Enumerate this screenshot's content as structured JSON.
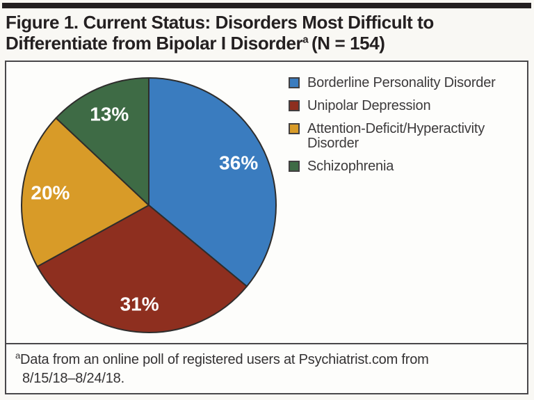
{
  "figure": {
    "title": {
      "line1": "Figure 1. Current Status: Disorders Most Difficult to",
      "line2": "Differentiate from Bipolar I Disorder",
      "superscript": "a",
      "sample": "(N = 154)"
    },
    "footnote": {
      "superscript": "a",
      "line1": "Data from an online poll of registered users at Psychiatrist.com from",
      "line2": "8/15/18–8/24/18."
    }
  },
  "chart_data": {
    "type": "pie",
    "title": "Current Status: Disorders Most Difficult to Differentiate from Bipolar I Disorder",
    "sample_size_n": 154,
    "unit": "%",
    "start_angle_deg": 0,
    "direction": "clockwise",
    "legend_position": "right",
    "categories": [
      "Borderline Personality Disorder",
      "Unipolar Depression",
      "Attention-Deficit/Hyperactivity Disorder",
      "Schizophrenia"
    ],
    "values": [
      36,
      31,
      20,
      13
    ],
    "slices": [
      {
        "label": "Borderline Personality Disorder",
        "value": 36,
        "display": "36%",
        "color": "#3a7cbf"
      },
      {
        "label": "Unipolar Depression",
        "value": 31,
        "display": "31%",
        "color": "#8e2f1f"
      },
      {
        "label": "Attention-Deficit/Hyperactivity Disorder",
        "value": 20,
        "display": "20%",
        "color": "#d89b28"
      },
      {
        "label": "Schizophrenia",
        "value": 13,
        "display": "13%",
        "color": "#3e6b45"
      }
    ],
    "slice_label_color": "#ffffff",
    "outline_color": "#2e2d2c"
  }
}
